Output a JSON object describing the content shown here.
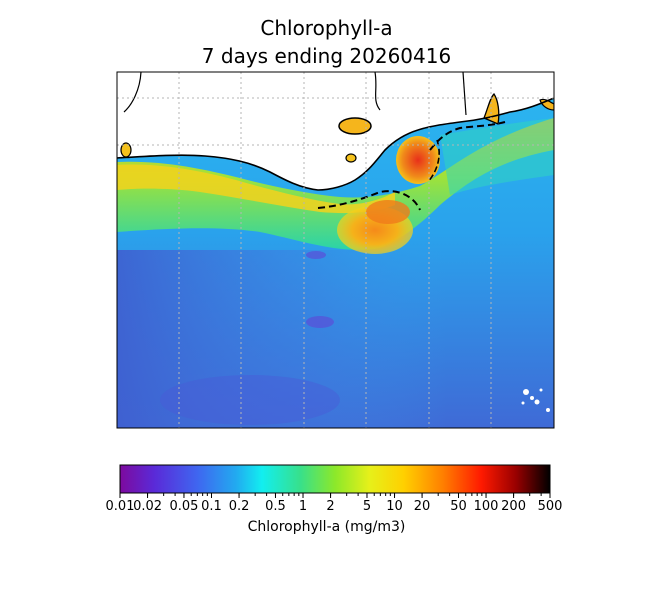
{
  "title": {
    "line1": "Chlorophyll-a",
    "line2": "7 days ending 20260416"
  },
  "map": {
    "description_colors": {
      "ocean_offshore": "#3d6fd9",
      "ocean_shelf": "#2bb3f0",
      "coastal_green": "#33d37a",
      "coastal_yellow": "#f2d21a",
      "plume_orange": "#f59a1e",
      "bay_red": "#e8401c",
      "land": "#ffffff",
      "coastline": "#000000",
      "graticule": "#bbbbbb"
    }
  },
  "colorbar": {
    "label": "Chlorophyll-a (mg/m3)",
    "scale": "log",
    "range": [
      0.01,
      500
    ],
    "colormap_stops": [
      "#7d0a9e",
      "#4a4ef0",
      "#21b6f0",
      "#12f0f0",
      "#43e07a",
      "#c8ef1a",
      "#ffe000",
      "#ff9a00",
      "#ff2a00",
      "#b00000",
      "#000000"
    ],
    "tick_labels": [
      "0.01",
      "0.02",
      "0.05",
      "0.1",
      "0.2",
      "0.5",
      "1",
      "2",
      "5",
      "10",
      "20",
      "50",
      "100",
      "200",
      "500"
    ],
    "tick_values": [
      0.01,
      0.02,
      0.05,
      0.1,
      0.2,
      0.5,
      1,
      2,
      5,
      10,
      20,
      50,
      100,
      200,
      500
    ]
  }
}
